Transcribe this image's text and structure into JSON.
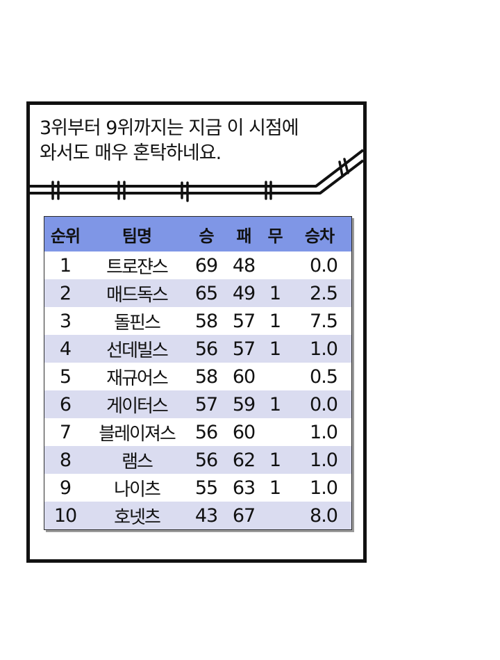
{
  "caption": {
    "line1": "3위부터 9위까지는 지금 이 시점에",
    "line2": "와서도 매우 혼탁하네요."
  },
  "colors": {
    "header_bg": "#7f96e6",
    "alt_row_bg": "#dadcf0",
    "panel_border": "#111111"
  },
  "standings": {
    "headers": {
      "rank": "순위",
      "team": "팀명",
      "wins": "승",
      "losses": "패",
      "draws": "무",
      "games_behind": "승차"
    },
    "rows": [
      {
        "rank": "1",
        "team": "트로쟌스",
        "wins": "69",
        "losses": "48",
        "draws": "",
        "gb": "0.0"
      },
      {
        "rank": "2",
        "team": "매드독스",
        "wins": "65",
        "losses": "49",
        "draws": "1",
        "gb": "2.5"
      },
      {
        "rank": "3",
        "team": "돌핀스",
        "wins": "58",
        "losses": "57",
        "draws": "1",
        "gb": "7.5"
      },
      {
        "rank": "4",
        "team": "선데빌스",
        "wins": "56",
        "losses": "57",
        "draws": "1",
        "gb": "1.0"
      },
      {
        "rank": "5",
        "team": "재규어스",
        "wins": "58",
        "losses": "60",
        "draws": "",
        "gb": "0.5"
      },
      {
        "rank": "6",
        "team": "게이터스",
        "wins": "57",
        "losses": "59",
        "draws": "1",
        "gb": "0.0"
      },
      {
        "rank": "7",
        "team": "블레이져스",
        "wins": "56",
        "losses": "60",
        "draws": "",
        "gb": "1.0"
      },
      {
        "rank": "8",
        "team": "램스",
        "wins": "56",
        "losses": "62",
        "draws": "1",
        "gb": "1.0"
      },
      {
        "rank": "9",
        "team": "나이츠",
        "wins": "55",
        "losses": "63",
        "draws": "1",
        "gb": "1.0"
      },
      {
        "rank": "10",
        "team": "호넷츠",
        "wins": "43",
        "losses": "67",
        "draws": "",
        "gb": "8.0"
      }
    ]
  }
}
